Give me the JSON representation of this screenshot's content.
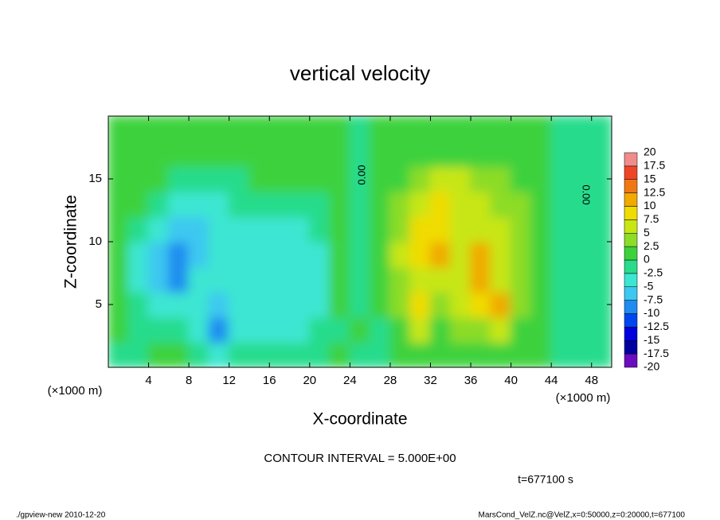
{
  "chart_data": {
    "type": "heatmap",
    "title": "vertical velocity",
    "xlabel": "X-coordinate",
    "ylabel": "Z-coordinate",
    "unit_label": "(×1000 m)",
    "xlim": [
      0,
      50
    ],
    "ylim": [
      0,
      20
    ],
    "xticks": [
      4,
      8,
      12,
      16,
      20,
      24,
      28,
      32,
      36,
      40,
      44,
      48
    ],
    "yticks": [
      5,
      10,
      15
    ],
    "x": [
      1,
      3,
      5,
      7,
      9,
      11,
      13,
      15,
      17,
      19,
      21,
      23,
      25,
      27,
      29,
      31,
      33,
      35,
      37,
      39,
      41,
      43,
      45,
      47,
      49
    ],
    "y": [
      1,
      3,
      5,
      7,
      9,
      11,
      13,
      15,
      17,
      19
    ],
    "values": [
      [
        -1,
        -0.5,
        0,
        0,
        -1,
        -3,
        -1,
        -1,
        -1,
        -2,
        -1,
        0.5,
        -1,
        -1,
        0,
        1,
        1,
        1,
        0.5,
        1,
        0.5,
        0,
        -1,
        -1,
        -0.5
      ],
      [
        0,
        -1,
        -2,
        -2,
        -3,
        -9,
        -4,
        -3,
        -3,
        -3,
        -2,
        -0.5,
        0,
        -0.5,
        2,
        7,
        2,
        4,
        3,
        5,
        2,
        0.5,
        -0.5,
        -0.5,
        -0.5
      ],
      [
        0,
        -2,
        -4,
        -4,
        -3,
        -7,
        -5,
        -4,
        -4,
        -4,
        -3,
        0,
        -0.5,
        1,
        3,
        8,
        3,
        5,
        8,
        10,
        3,
        1,
        -0.5,
        -0.5,
        -0.5
      ],
      [
        0,
        -3,
        -6,
        -9,
        -5,
        -5,
        -4,
        -4,
        -4,
        -4,
        -3,
        0,
        -0.5,
        1.5,
        4,
        5,
        6,
        5,
        12,
        7,
        4,
        1,
        -0.5,
        -0.5,
        -0.5
      ],
      [
        0,
        -3,
        -7,
        -10,
        -7,
        -4,
        -3,
        -4,
        -4,
        -3,
        -3,
        0,
        -0.5,
        1.5,
        5,
        9,
        11,
        6,
        11,
        6,
        3.5,
        1,
        -0.5,
        -0.5,
        -0.5
      ],
      [
        0.5,
        -2,
        -5,
        -7,
        -6,
        -4,
        -3,
        -3,
        -3,
        -3,
        -2,
        0,
        -0.5,
        1,
        4,
        8,
        9,
        7,
        7,
        5,
        3,
        1,
        -0.5,
        -0.5,
        -0.5
      ],
      [
        1,
        0,
        -2,
        -4,
        -4,
        -3,
        -2,
        -1,
        -2,
        -2,
        -1.5,
        0.5,
        -0.5,
        1,
        3,
        6,
        7.5,
        7,
        6,
        4,
        2.5,
        1,
        -0.5,
        -0.5,
        -0.5
      ],
      [
        1,
        1,
        0.5,
        -1,
        -1.5,
        -1,
        -0.5,
        0,
        0.5,
        0.5,
        1,
        0.5,
        -0.5,
        0.5,
        2,
        4,
        5,
        5,
        4,
        3,
        2,
        0.5,
        -0.5,
        -0.5,
        -0.5
      ],
      [
        1,
        1,
        1,
        1,
        1,
        1,
        1,
        1,
        1,
        1,
        1,
        0.5,
        -0.5,
        0,
        1,
        1,
        2,
        2,
        1.5,
        1,
        0.5,
        0,
        -0.5,
        -0.5,
        -0.5
      ],
      [
        1,
        1,
        1,
        1,
        1,
        1,
        1,
        1,
        1,
        1,
        1,
        0.5,
        -0.5,
        0,
        1,
        1,
        1,
        1,
        1,
        1,
        0.5,
        0,
        -0.5,
        -0.5,
        -0.5
      ]
    ],
    "levels": [
      -20,
      -17.5,
      -15,
      -12.5,
      -10,
      -7.5,
      -5,
      -2.5,
      0,
      2.5,
      5,
      7.5,
      10,
      12.5,
      15,
      17.5,
      20
    ],
    "colors": [
      "#6a0dbe",
      "#0000a0",
      "#0000dc",
      "#0046f0",
      "#1e8cf0",
      "#3cc8f0",
      "#3ce6d2",
      "#28dc8c",
      "#3cd23c",
      "#8cdc28",
      "#c8e614",
      "#f0dc00",
      "#f0aa00",
      "#f07814",
      "#f04628",
      "#f08c8c"
    ],
    "contour_labels": [
      "0.00",
      "0.00"
    ],
    "contour_interval_label": "CONTOUR INTERVAL = 5.000E+00",
    "time_label": "t=677100 s",
    "footer_left": "./gpview-new  2010-12-20",
    "footer_right": "MarsCond_VelZ.nc@VelZ,x=0:50000,z=0:20000,t=677100"
  }
}
